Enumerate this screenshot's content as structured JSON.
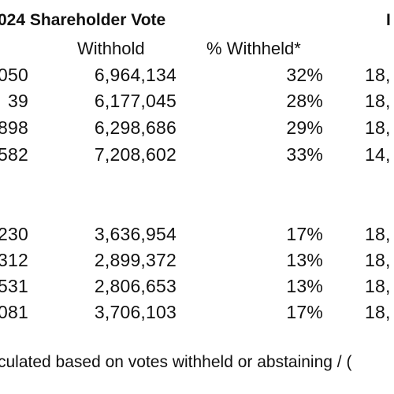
{
  "title": "024 Shareholder Vote",
  "title_right": "I",
  "headers": {
    "withhold": "Withhold",
    "pct_withheld": "% Withheld*"
  },
  "rows": [
    {
      "a": "050",
      "withhold": "6,964,134",
      "pct": "32%",
      "r": "18,"
    },
    {
      "a": "39",
      "withhold": "6,177,045",
      "pct": "28%",
      "r": "18,"
    },
    {
      "a": "898",
      "withhold": "6,298,686",
      "pct": "29%",
      "r": "18,"
    },
    {
      "a": "582",
      "withhold": "7,208,602",
      "pct": "33%",
      "r": "14,"
    },
    {
      "a": "230",
      "withhold": "3,636,954",
      "pct": "17%",
      "r": "18,"
    },
    {
      "a": "312",
      "withhold": "2,899,372",
      "pct": "13%",
      "r": "18,"
    },
    {
      "a": "531",
      "withhold": "2,806,653",
      "pct": "13%",
      "r": "18,"
    },
    {
      "a": "081",
      "withhold": "3,706,103",
      "pct": "17%",
      "r": "18,"
    }
  ],
  "footnote": "culated based on votes withheld or abstaining / ("
}
